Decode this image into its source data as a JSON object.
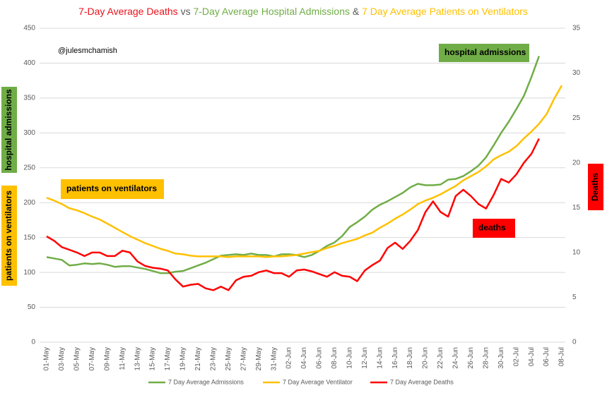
{
  "chart_data": {
    "type": "line",
    "title": [
      {
        "text": "7-Day Average Deaths",
        "color": "#e8121b"
      },
      {
        "text": " vs ",
        "color": "#595959"
      },
      {
        "text": "7-Day Average Hospital Admissions",
        "color": "#70ad47"
      },
      {
        "text": " & ",
        "color": "#595959"
      },
      {
        "text": "7 Day Average Patients on Ventilators",
        "color": "#ffc000"
      }
    ],
    "handle": "@julesmchamish",
    "y_label": {
      "text": "hospital admissions",
      "color": "#70ad47"
    },
    "y_label_2": {
      "text": "patients on ventilators",
      "color": "#ffc000"
    },
    "y2_label": {
      "text": "Deaths",
      "color": "#ff0000"
    },
    "annotations": [
      {
        "text": "hospital admissions",
        "color": "#70ad47"
      },
      {
        "text": "patients on ventilators",
        "color": "#ffc000"
      },
      {
        "text": "deaths",
        "color": "#ff0000"
      }
    ],
    "categories": [
      "01-May",
      null,
      "03-May",
      null,
      "05-May",
      null,
      "07-May",
      null,
      "09-May",
      null,
      "11-May",
      null,
      "13-May",
      null,
      "15-May",
      null,
      "17-May",
      null,
      "19-May",
      null,
      "21-May",
      null,
      "23-May",
      null,
      "25-May",
      null,
      "27-May",
      null,
      "29-May",
      null,
      "31-May",
      null,
      "02-Jun",
      null,
      "04-Jun",
      null,
      "06-Jun",
      null,
      "08-Jun",
      null,
      "10-Jun",
      null,
      "12-Jun",
      null,
      "14-Jun",
      null,
      "16-Jun",
      null,
      "18-Jun",
      null,
      "20-Jun",
      null,
      "22-Jun",
      null,
      "24-Jun",
      null,
      "26-Jun",
      null,
      "28-Jun",
      null,
      "30-Jun",
      null,
      "02-Jul",
      null,
      "04-Jul",
      null,
      "06-Jul",
      null,
      "08-Jul"
    ],
    "series": [
      {
        "name": "7 Day Average Admissions",
        "color": "#70ad47",
        "axis": "y",
        "values": [
          122,
          120,
          118,
          110,
          111,
          113,
          112,
          113,
          111,
          108,
          109,
          109,
          107,
          105,
          102,
          99,
          99,
          101,
          102,
          106,
          110,
          114,
          119,
          124,
          125,
          126,
          125,
          127,
          125,
          125,
          123,
          126,
          126,
          125,
          122,
          125,
          131,
          138,
          143,
          152,
          165,
          172,
          180,
          190,
          197,
          202,
          208,
          214,
          222,
          227,
          225,
          225,
          226,
          233,
          234,
          238,
          245,
          253,
          265,
          282,
          300,
          316,
          334,
          353,
          380,
          410,
          null,
          null,
          null
        ]
      },
      {
        "name": "7 Day Average Ventilator",
        "color": "#ffc000",
        "axis": "y",
        "values": [
          207,
          203,
          198,
          192,
          189,
          185,
          180,
          176,
          170,
          164,
          158,
          152,
          147,
          142,
          138,
          134,
          131,
          127,
          126,
          124,
          123,
          123,
          123,
          123,
          122,
          123,
          123,
          123,
          123,
          122,
          123,
          123,
          124,
          125,
          127,
          129,
          131,
          135,
          138,
          142,
          145,
          148,
          153,
          157,
          164,
          170,
          177,
          183,
          190,
          198,
          203,
          207,
          212,
          218,
          224,
          232,
          238,
          244,
          252,
          262,
          268,
          273,
          281,
          292,
          302,
          313,
          327,
          349,
          368
        ]
      },
      {
        "name": "7 Day Average Deaths",
        "color": "#ff0000",
        "axis": "y2",
        "values": [
          11.8,
          11.3,
          10.6,
          10.3,
          10.0,
          9.6,
          10.0,
          10.0,
          9.6,
          9.6,
          10.2,
          10.0,
          9.0,
          8.5,
          8.3,
          8.2,
          8.0,
          7.0,
          6.2,
          6.4,
          6.5,
          6.0,
          5.8,
          6.2,
          5.8,
          6.9,
          7.3,
          7.4,
          7.8,
          8.0,
          7.7,
          7.7,
          7.3,
          8.0,
          8.1,
          7.9,
          7.6,
          7.3,
          7.8,
          7.4,
          7.3,
          6.8,
          8.0,
          8.6,
          9.1,
          10.5,
          11.1,
          10.4,
          11.3,
          12.5,
          14.5,
          15.7,
          14.5,
          14.0,
          16.3,
          17.0,
          16.3,
          15.4,
          14.9,
          16.4,
          18.2,
          17.8,
          18.7,
          20.0,
          21.0,
          22.7,
          null,
          null,
          null
        ]
      }
    ],
    "ylim": [
      0,
      450
    ],
    "yticks": [
      0,
      50,
      100,
      150,
      200,
      250,
      300,
      350,
      400,
      450
    ],
    "y2lim": [
      0,
      35
    ],
    "y2ticks": [
      0,
      5,
      10,
      15,
      20,
      25,
      30,
      35
    ],
    "grid": true
  }
}
